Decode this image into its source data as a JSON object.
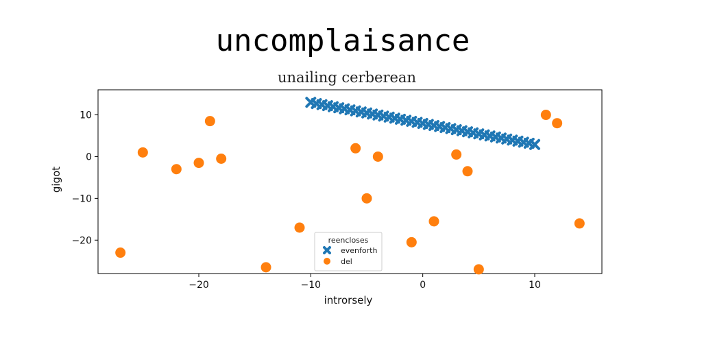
{
  "chart_data": {
    "type": "scatter",
    "title": "uncomplaisance",
    "subtitle": "unailing cerberean",
    "xlabel": "introrsely",
    "ylabel": "gigot",
    "xlim": [
      -29,
      16
    ],
    "ylim": [
      -28,
      16
    ],
    "xticks": [
      -20,
      -10,
      0,
      10
    ],
    "yticks": [
      -20,
      -10,
      0,
      10
    ],
    "xtick_labels": [
      "−20",
      "−10",
      "0",
      "10"
    ],
    "ytick_labels": [
      "−20",
      "−10",
      "0",
      "10"
    ],
    "grid": false,
    "legend": {
      "title": "reencloses",
      "placement": "bottom-center"
    },
    "series": [
      {
        "name": "evenforth",
        "marker": "x",
        "color": "#1f77b4",
        "x": [
          -10,
          -9.5,
          -9,
          -8.5,
          -8,
          -7.5,
          -7,
          -6.5,
          -6,
          -5.5,
          -5,
          -4.5,
          -4,
          -3.5,
          -3,
          -2.5,
          -2,
          -1.5,
          -1,
          -0.5,
          0,
          0.5,
          1,
          1.5,
          2,
          2.5,
          3,
          3.5,
          4,
          4.5,
          5,
          5.5,
          6,
          6.5,
          7,
          7.5,
          8,
          8.5,
          9,
          9.5,
          10
        ],
        "y": [
          13,
          12.7,
          12.45,
          12.2,
          11.95,
          11.7,
          11.45,
          11.2,
          10.95,
          10.7,
          10.45,
          10.2,
          9.95,
          9.7,
          9.45,
          9.2,
          8.95,
          8.7,
          8.45,
          8.2,
          7.95,
          7.7,
          7.45,
          7.2,
          6.95,
          6.7,
          6.45,
          6.2,
          5.95,
          5.7,
          5.45,
          5.2,
          4.95,
          4.7,
          4.45,
          4.2,
          3.95,
          3.7,
          3.45,
          3.2,
          2.9
        ]
      },
      {
        "name": "del",
        "marker": "o",
        "color": "#ff7f0e",
        "x": [
          -27,
          -25,
          -22,
          -20,
          -19,
          -18,
          -14,
          -11,
          -6,
          -5,
          -4,
          -1,
          1,
          3,
          4,
          5,
          11,
          12,
          14
        ],
        "y": [
          -23,
          1,
          -3,
          -1.5,
          8.5,
          -0.5,
          -26.5,
          -17,
          2,
          -10,
          0,
          -20.5,
          -15.5,
          0.5,
          -3.5,
          -27,
          10,
          8,
          -16
        ]
      }
    ]
  }
}
